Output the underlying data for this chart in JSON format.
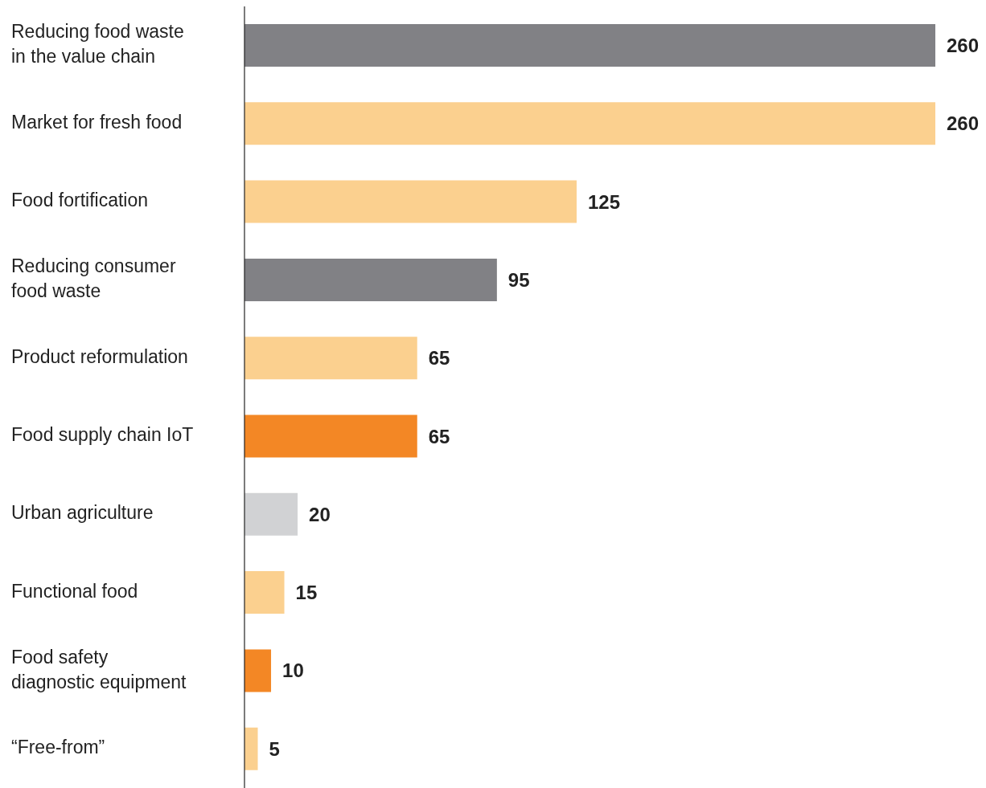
{
  "chart_data": {
    "type": "bar",
    "orientation": "horizontal",
    "data_labels": true,
    "categories": [
      "Reducing food waste\nin the value chain",
      "Market for fresh food",
      "Food fortification",
      "Reducing consumer\nfood waste",
      "Product reformulation",
      "Food supply chain IoT",
      "Urban agriculture",
      "Functional food",
      "Food safety\ndiagnostic equipment",
      "“Free-from”"
    ],
    "values": [
      260,
      260,
      125,
      95,
      65,
      65,
      20,
      15,
      10,
      5
    ],
    "colors": [
      "#818185",
      "#fbd08f",
      "#fbd08f",
      "#818185",
      "#fbd08f",
      "#f38725",
      "#d1d2d4",
      "#fbd08f",
      "#f38725",
      "#fbd08f"
    ]
  }
}
